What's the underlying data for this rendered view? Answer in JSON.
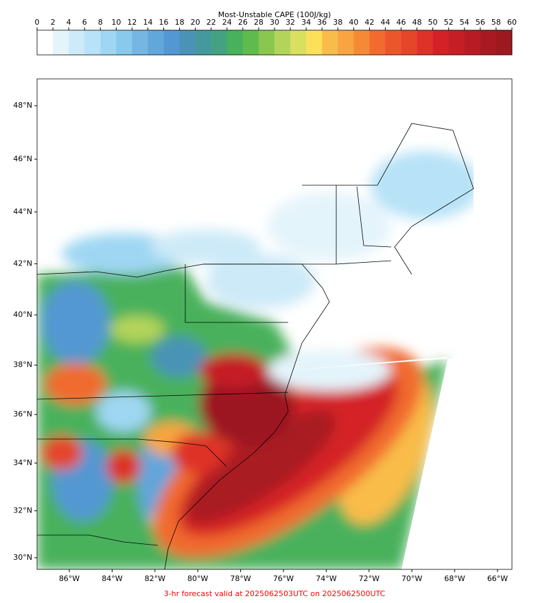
{
  "colorbar": {
    "title": "Most-Unstable CAPE (100J/kg)",
    "ticks": [
      0,
      2,
      4,
      6,
      8,
      10,
      12,
      14,
      16,
      18,
      20,
      22,
      24,
      26,
      28,
      30,
      32,
      34,
      36,
      38,
      40,
      42,
      44,
      46,
      48,
      50,
      52,
      54,
      56,
      58,
      60
    ],
    "colors": [
      "#ffffff",
      "#e4f4fb",
      "#cdeaf8",
      "#b7e2f7",
      "#9fd7f3",
      "#89c9ec",
      "#75b6e2",
      "#62a6da",
      "#5398d2",
      "#4a93b7",
      "#45999c",
      "#44a283",
      "#48b15b",
      "#5fbb4c",
      "#8ac74e",
      "#b3d45a",
      "#d9df5f",
      "#fbe05a",
      "#f9bc4a",
      "#f8a541",
      "#f58a36",
      "#f16b2e",
      "#ec562b",
      "#e54529",
      "#de3128",
      "#d42127",
      "#c61e25",
      "#b81b23",
      "#a81a21",
      "#9c1920"
    ]
  },
  "map": {
    "lat_ticks": [
      {
        "value": 48,
        "label": "48°N"
      },
      {
        "value": 46,
        "label": "46°N"
      },
      {
        "value": 44,
        "label": "44°N"
      },
      {
        "value": 42,
        "label": "42°N"
      },
      {
        "value": 40,
        "label": "40°N"
      },
      {
        "value": 38,
        "label": "38°N"
      },
      {
        "value": 36,
        "label": "36°N"
      },
      {
        "value": 34,
        "label": "34°N"
      },
      {
        "value": 32,
        "label": "32°N"
      },
      {
        "value": 30,
        "label": "30°N"
      }
    ],
    "lon_ticks": [
      {
        "value": -86,
        "label": "86°W"
      },
      {
        "value": -84,
        "label": "84°W"
      },
      {
        "value": -82,
        "label": "82°W"
      },
      {
        "value": -80,
        "label": "80°W"
      },
      {
        "value": -78,
        "label": "78°W"
      },
      {
        "value": -76,
        "label": "76°W"
      },
      {
        "value": -74,
        "label": "74°W"
      },
      {
        "value": -72,
        "label": "72°W"
      },
      {
        "value": -70,
        "label": "70°W"
      },
      {
        "value": -68,
        "label": "68°W"
      },
      {
        "value": -66,
        "label": "66°W"
      }
    ]
  },
  "footer": "3-hr forecast valid at 2025062503UTC on 2025062500UTC"
}
